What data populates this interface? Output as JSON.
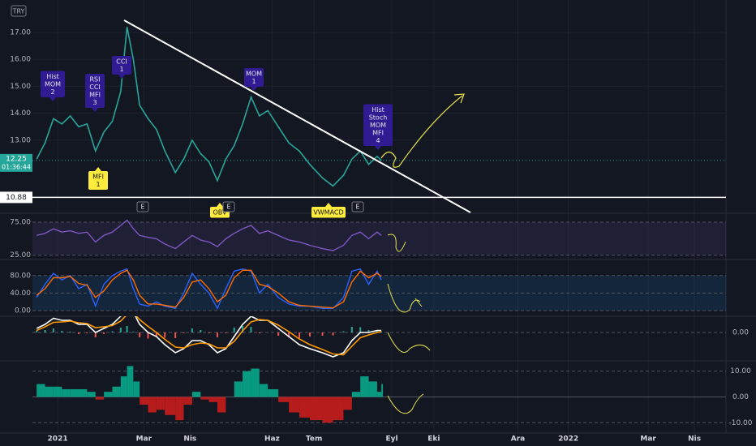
{
  "chart_data": {
    "type": "multi-panel",
    "xlim": [
      0,
      330
    ],
    "xticks": [
      {
        "value": 12,
        "label": "2021"
      },
      {
        "value": 53,
        "label": "Mar"
      },
      {
        "value": 75,
        "label": "Nis"
      },
      {
        "value": 114,
        "label": "Haz"
      },
      {
        "value": 134,
        "label": "Tem"
      },
      {
        "value": 171,
        "label": "Eyl"
      },
      {
        "value": 191,
        "label": "Eki"
      },
      {
        "value": 231,
        "label": "Ara"
      },
      {
        "value": 255,
        "label": "2022"
      },
      {
        "value": 293,
        "label": "Mar"
      },
      {
        "value": 315,
        "label": "Nis"
      }
    ],
    "x": [
      2,
      6,
      10,
      14,
      18,
      22,
      26,
      30,
      34,
      38,
      42,
      45,
      48,
      51,
      55,
      59,
      63,
      68,
      72,
      76,
      80,
      84,
      88,
      92,
      96,
      100,
      104,
      108,
      112,
      117,
      122,
      127,
      132,
      138,
      143,
      148,
      152,
      156,
      160,
      164,
      166
    ],
    "grid": true,
    "panels": [
      {
        "type": "line",
        "currency": "TRY",
        "ylim": [
          10.32,
          18.05
        ],
        "yticks": [
          {
            "value": 17,
            "label": "17.00"
          },
          {
            "value": 16,
            "label": "16.00"
          },
          {
            "value": 15,
            "label": "15.00"
          },
          {
            "value": 14,
            "label": "14.00"
          },
          {
            "value": 13,
            "label": "13.00"
          }
        ],
        "series": [
          {
            "color": "#26a69a",
            "values": [
              12.3,
              12.9,
              13.8,
              13.6,
              13.9,
              13.5,
              13.6,
              12.6,
              13.3,
              13.7,
              14.8,
              17.2,
              16.0,
              14.3,
              13.8,
              13.4,
              12.6,
              11.8,
              12.3,
              13.0,
              12.5,
              12.2,
              11.5,
              12.3,
              12.8,
              13.6,
              14.6,
              13.9,
              14.1,
              13.5,
              12.9,
              12.6,
              12.1,
              11.6,
              11.3,
              11.7,
              12.3,
              12.6,
              12.1,
              12.4,
              12.25
            ]
          }
        ],
        "last_price": 12.25,
        "countdown": "01:36:44",
        "support": 10.88,
        "annotations": [
          {
            "lines": [
              "Hist",
              "MOM",
              "2"
            ],
            "color": "#311b92"
          },
          {
            "lines": [
              "RSI",
              "CCI",
              "MFI",
              "3"
            ],
            "color": "#311b92"
          },
          {
            "lines": [
              "CCI",
              "1"
            ],
            "color": "#311b92"
          },
          {
            "lines": [
              "MOM",
              "1"
            ],
            "color": "#311b92"
          },
          {
            "lines": [
              "Hist",
              "Stoch",
              "MOM",
              "MFI",
              "4"
            ],
            "color": "#311b92"
          },
          {
            "lines": [
              "MFI",
              "1"
            ],
            "color": "#ffeb3b"
          },
          {
            "lines": [
              "OBV"
            ],
            "color": "#ffeb3b"
          },
          {
            "lines": [
              "VWMACD"
            ],
            "color": "#ffeb3b"
          },
          {
            "lines": [
              "E"
            ],
            "color": "#131722"
          },
          {
            "lines": [
              "E"
            ],
            "color": "#131722"
          },
          {
            "lines": [
              "E"
            ],
            "color": "#131722"
          }
        ]
      },
      {
        "type": "line",
        "ylim": [
          21,
          86
        ],
        "yticks": [
          {
            "value": 75,
            "label": "75.00"
          },
          {
            "value": 25,
            "label": "25.00"
          }
        ],
        "band_color": "rgba(126,87,194,0.12)",
        "series": [
          {
            "color": "#7e57c2",
            "values": [
              55,
              58,
              65,
              60,
              62,
              58,
              60,
              45,
              55,
              60,
              70,
              78,
              65,
              55,
              52,
              50,
              42,
              35,
              45,
              55,
              48,
              45,
              38,
              50,
              58,
              65,
              70,
              58,
              62,
              55,
              48,
              45,
              40,
              35,
              32,
              40,
              55,
              60,
              50,
              60,
              55
            ]
          }
        ]
      },
      {
        "type": "line",
        "ylim": [
          -13,
          113
        ],
        "yticks": [
          {
            "value": 80,
            "label": "80.00"
          },
          {
            "value": 40,
            "label": "40.00"
          },
          {
            "value": 0,
            "label": "0.00"
          }
        ],
        "band_color": "rgba(33,150,243,0.12)",
        "series": [
          {
            "color": "#2962ff",
            "values": [
              30,
              60,
              85,
              70,
              80,
              50,
              60,
              10,
              60,
              80,
              90,
              95,
              50,
              15,
              10,
              20,
              10,
              5,
              40,
              85,
              60,
              40,
              5,
              50,
              90,
              95,
              90,
              40,
              60,
              30,
              15,
              10,
              10,
              5,
              5,
              30,
              90,
              95,
              60,
              90,
              70
            ]
          },
          {
            "color": "#ff6d00",
            "values": [
              35,
              50,
              75,
              75,
              78,
              62,
              58,
              30,
              45,
              70,
              85,
              92,
              70,
              35,
              15,
              15,
              12,
              8,
              30,
              65,
              70,
              50,
              20,
              35,
              75,
              92,
              92,
              60,
              55,
              40,
              20,
              12,
              10,
              8,
              6,
              20,
              65,
              90,
              75,
              85,
              78
            ]
          }
        ]
      },
      {
        "type": "macd",
        "ylim": [
          -0.7,
          0.4
        ],
        "yticks": [
          {
            "value": 0,
            "label": "0.00"
          }
        ],
        "histogram": {
          "positive_color": "#26a69a",
          "negative_color": "#ef5350",
          "values": [
            0.05,
            0.06,
            0.1,
            0.04,
            0.02,
            -0.04,
            -0.02,
            -0.12,
            -0.04,
            0.03,
            0.12,
            0.16,
            0.02,
            -0.12,
            -0.15,
            -0.1,
            -0.13,
            -0.14,
            -0.02,
            0.1,
            0.06,
            -0.02,
            -0.12,
            -0.02,
            0.12,
            0.16,
            0.14,
            -0.02,
            0.0,
            -0.08,
            -0.12,
            -0.14,
            -0.1,
            -0.08,
            -0.07,
            0.03,
            0.14,
            0.13,
            0.06,
            0.05,
            0.03
          ]
        },
        "series": [
          {
            "color": "#ffffff",
            "values": [
              0.1,
              0.2,
              0.35,
              0.3,
              0.3,
              0.2,
              0.2,
              0.0,
              0.1,
              0.2,
              0.4,
              0.6,
              0.5,
              0.2,
              0.0,
              -0.1,
              -0.3,
              -0.5,
              -0.4,
              -0.2,
              -0.2,
              -0.3,
              -0.5,
              -0.4,
              -0.1,
              0.2,
              0.4,
              0.3,
              0.3,
              0.1,
              -0.1,
              -0.3,
              -0.4,
              -0.5,
              -0.6,
              -0.5,
              -0.2,
              0.0,
              0.0,
              0.05,
              0.05
            ]
          },
          {
            "color": "#ff9800",
            "values": [
              0.05,
              0.14,
              0.25,
              0.26,
              0.28,
              0.24,
              0.22,
              0.12,
              0.14,
              0.17,
              0.28,
              0.44,
              0.48,
              0.32,
              0.15,
              0.0,
              -0.17,
              -0.36,
              -0.38,
              -0.3,
              -0.26,
              -0.28,
              -0.38,
              -0.38,
              -0.22,
              0.04,
              0.26,
              0.32,
              0.3,
              0.18,
              0.02,
              -0.16,
              -0.3,
              -0.42,
              -0.53,
              -0.55,
              -0.34,
              -0.13,
              -0.06,
              0.0,
              0.02
            ]
          }
        ]
      },
      {
        "type": "area-bars",
        "ylim": [
          -14,
          14
        ],
        "yticks": [
          {
            "value": 10,
            "label": "10.00"
          },
          {
            "value": 0,
            "label": "0.00"
          },
          {
            "value": -10,
            "label": "-10.00"
          }
        ],
        "positive_color": "#089981",
        "negative_color": "#b71c1c",
        "values": [
          5,
          4,
          4,
          3,
          3,
          3,
          2,
          -1,
          2,
          4,
          8,
          12,
          6,
          -3,
          -6,
          -5,
          -7,
          -9,
          -3,
          2,
          -1,
          -2,
          -6,
          0,
          6,
          10,
          11,
          5,
          3,
          -2,
          -6,
          -8,
          -9,
          -10,
          -9,
          -5,
          2,
          8,
          6,
          2,
          5
        ]
      }
    ]
  }
}
